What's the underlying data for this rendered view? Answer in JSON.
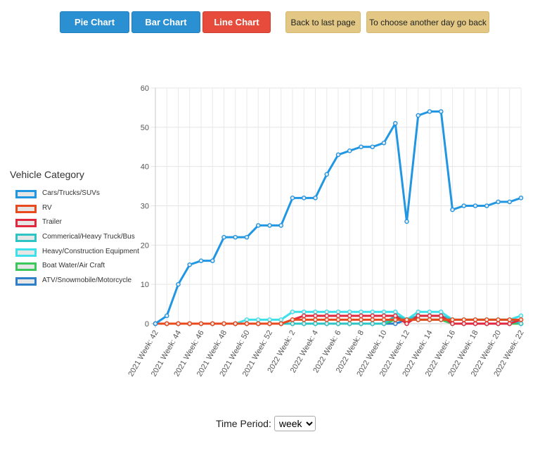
{
  "buttons": {
    "pie": "Pie Chart",
    "bar": "Bar Chart",
    "line": "Line Chart",
    "back": "Back to last page",
    "choose": "To choose another day go back"
  },
  "legend_title": "Vehicle Category",
  "time_period": {
    "label": "Time Period:",
    "selected": "week"
  },
  "chart_data": {
    "type": "line",
    "title": "",
    "xlabel": "",
    "ylabel": "",
    "ylim": [
      0,
      60
    ],
    "yticks": [
      0,
      10,
      20,
      30,
      40,
      50,
      60
    ],
    "grid": true,
    "legend_position": "left",
    "categories": [
      "2021 Week: 42",
      "2021 Week: 43",
      "2021 Week: 44",
      "2021 Week: 45",
      "2021 Week: 46",
      "2021 Week: 47",
      "2021 Week: 48",
      "2021 Week: 49",
      "2021 Week: 50",
      "2021 Week: 51",
      "2021 Week: 52",
      "2022 Week: 1",
      "2022 Week: 2",
      "2022 Week: 3",
      "2022 Week: 4",
      "2022 Week: 5",
      "2022 Week: 6",
      "2022 Week: 7",
      "2022 Week: 8",
      "2022 Week: 9",
      "2022 Week: 10",
      "2022 Week: 11",
      "2022 Week: 12",
      "2022 Week: 13",
      "2022 Week: 14",
      "2022 Week: 15",
      "2022 Week: 16",
      "2022 Week: 17",
      "2022 Week: 18",
      "2022 Week: 19",
      "2022 Week: 20",
      "2022 Week: 21",
      "2022 Week: 22"
    ],
    "xtick_labels": [
      "2021 Week: 42",
      "2021 Week: 44",
      "2021 Week: 46",
      "2021 Week: 48",
      "2021 Week: 50",
      "2021 Week: 52",
      "2022 Week: 2",
      "2022 Week: 4",
      "2022 Week: 6",
      "2022 Week: 8",
      "2022 Week: 10",
      "2022 Week: 12",
      "2022 Week: 14",
      "2022 Week: 16",
      "2022 Week: 18",
      "2022 Week: 20",
      "2022 Week: 22"
    ],
    "series": [
      {
        "name": "Cars/Trucks/SUVs",
        "color": "#2196e3",
        "values": [
          0,
          2,
          10,
          15,
          16,
          16,
          22,
          22,
          22,
          25,
          25,
          25,
          32,
          32,
          32,
          38,
          43,
          44,
          45,
          45,
          46,
          51,
          26,
          53,
          54,
          54,
          29,
          30,
          30,
          30,
          31,
          31,
          32
        ]
      },
      {
        "name": "RV",
        "color": "#e8491d",
        "values": [
          0,
          0,
          0,
          0,
          0,
          0,
          0,
          0,
          0,
          0,
          0,
          0,
          1,
          1,
          1,
          1,
          1,
          1,
          1,
          1,
          1,
          1,
          1,
          1,
          1,
          1,
          1,
          1,
          1,
          1,
          1,
          1,
          1
        ]
      },
      {
        "name": "Trailer",
        "color": "#e0283f",
        "values": [
          0,
          0,
          0,
          0,
          0,
          0,
          0,
          0,
          0,
          0,
          0,
          0,
          1,
          2,
          2,
          2,
          2,
          2,
          2,
          2,
          2,
          2,
          0,
          2,
          2,
          2,
          0,
          0,
          0,
          0,
          0,
          0,
          1
        ]
      },
      {
        "name": "Commerical/Heavy Truck/Bus",
        "color": "#2fc4c4",
        "values": [
          0,
          0,
          0,
          0,
          0,
          0,
          0,
          0,
          0,
          0,
          0,
          0,
          0,
          0,
          0,
          0,
          0,
          0,
          0,
          0,
          0,
          2,
          1,
          2,
          2,
          2,
          1,
          1,
          1,
          1,
          1,
          1,
          0
        ]
      },
      {
        "name": "Heavy/Construction Equipment",
        "color": "#3ee0ea",
        "values": [
          0,
          0,
          0,
          0,
          0,
          0,
          0,
          0,
          1,
          1,
          1,
          1,
          3,
          3,
          3,
          3,
          3,
          3,
          3,
          3,
          3,
          3,
          1,
          3,
          3,
          3,
          1,
          1,
          1,
          1,
          1,
          1,
          2
        ]
      },
      {
        "name": "Boat Water/Air Craft",
        "color": "#3cc75a",
        "values": [
          0,
          0,
          0,
          0,
          0,
          0,
          0,
          0,
          0,
          0,
          0,
          0,
          0,
          0,
          0,
          0,
          0,
          0,
          0,
          0,
          0,
          1,
          1,
          1,
          1,
          1,
          0,
          0,
          0,
          0,
          0,
          0,
          0
        ]
      },
      {
        "name": "ATV/Snowmobile/Motorcycle",
        "color": "#2e7fc9",
        "values": [
          0,
          0,
          0,
          0,
          0,
          0,
          0,
          0,
          0,
          0,
          0,
          0,
          0,
          0,
          0,
          0,
          0,
          0,
          0,
          0,
          0,
          0,
          1,
          1,
          1,
          1,
          0,
          0,
          0,
          0,
          0,
          0,
          0
        ]
      }
    ]
  }
}
